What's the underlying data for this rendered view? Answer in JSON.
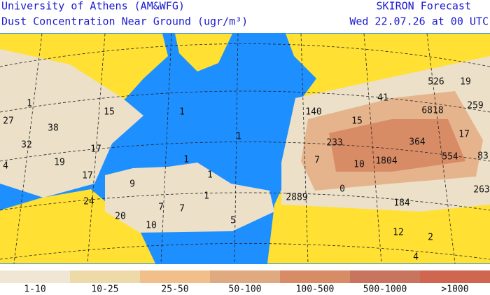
{
  "header": {
    "institution": "University of Athens (AM&WFG)",
    "title": "Dust Concentration Near Ground (ugr/m³)",
    "product": "SKIRON Forecast",
    "date": "Wed 22.07.26 at 00 UTC"
  },
  "legend": [
    {
      "label": "1-10",
      "color": "#efe6d4"
    },
    {
      "label": "10-25",
      "color": "#eed9a8"
    },
    {
      "label": "25-50",
      "color": "#f0bf8a"
    },
    {
      "label": "50-100",
      "color": "#e0aa80"
    },
    {
      "label": "100-500",
      "color": "#d88c66"
    },
    {
      "label": "500-1000",
      "color": "#c8745e"
    },
    {
      "label": ">1000",
      "color": "#d06650"
    }
  ],
  "map_labels": [
    "1",
    "27",
    "38",
    "15",
    "1",
    "32",
    "17",
    "19",
    "4",
    "17",
    "9",
    "1",
    "1",
    "1",
    "1",
    "7",
    "7",
    "24",
    "20",
    "10",
    "5",
    "140",
    "41",
    "526",
    "19",
    "259",
    "6818",
    "15",
    "233",
    "364",
    "17",
    "7",
    "10",
    "1804",
    "554",
    "83",
    "2889",
    "0",
    "263",
    "184",
    "2",
    "12",
    "4"
  ]
}
